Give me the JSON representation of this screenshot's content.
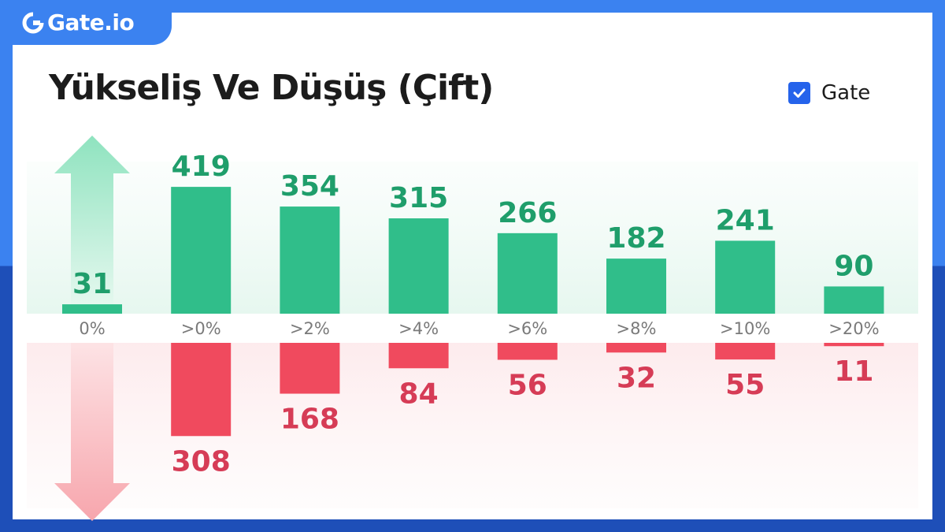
{
  "brand": {
    "name": "Gate.io"
  },
  "colors": {
    "up": "#30be8a",
    "down": "#f04a5e",
    "up_label": "#1f9e6b",
    "down_label": "#d63c56",
    "accent": "#3b82f0",
    "checkbox": "#2563eb"
  },
  "chart_data": {
    "type": "bar",
    "title": "Yükseliş Ve Düşüş (Çift)",
    "categories": [
      "0%",
      ">0%",
      ">2%",
      ">4%",
      ">6%",
      ">8%",
      ">10%",
      ">20%"
    ],
    "series": [
      {
        "name": "up",
        "values": [
          31,
          419,
          354,
          315,
          266,
          182,
          241,
          90
        ]
      },
      {
        "name": "down",
        "values": [
          null,
          308,
          168,
          84,
          56,
          32,
          55,
          11
        ]
      }
    ],
    "legend": {
      "label": "Gate",
      "checked": true,
      "position": "top-right"
    },
    "icons": [
      "up-arrow-icon",
      "down-arrow-icon",
      "checkbox-icon"
    ]
  }
}
